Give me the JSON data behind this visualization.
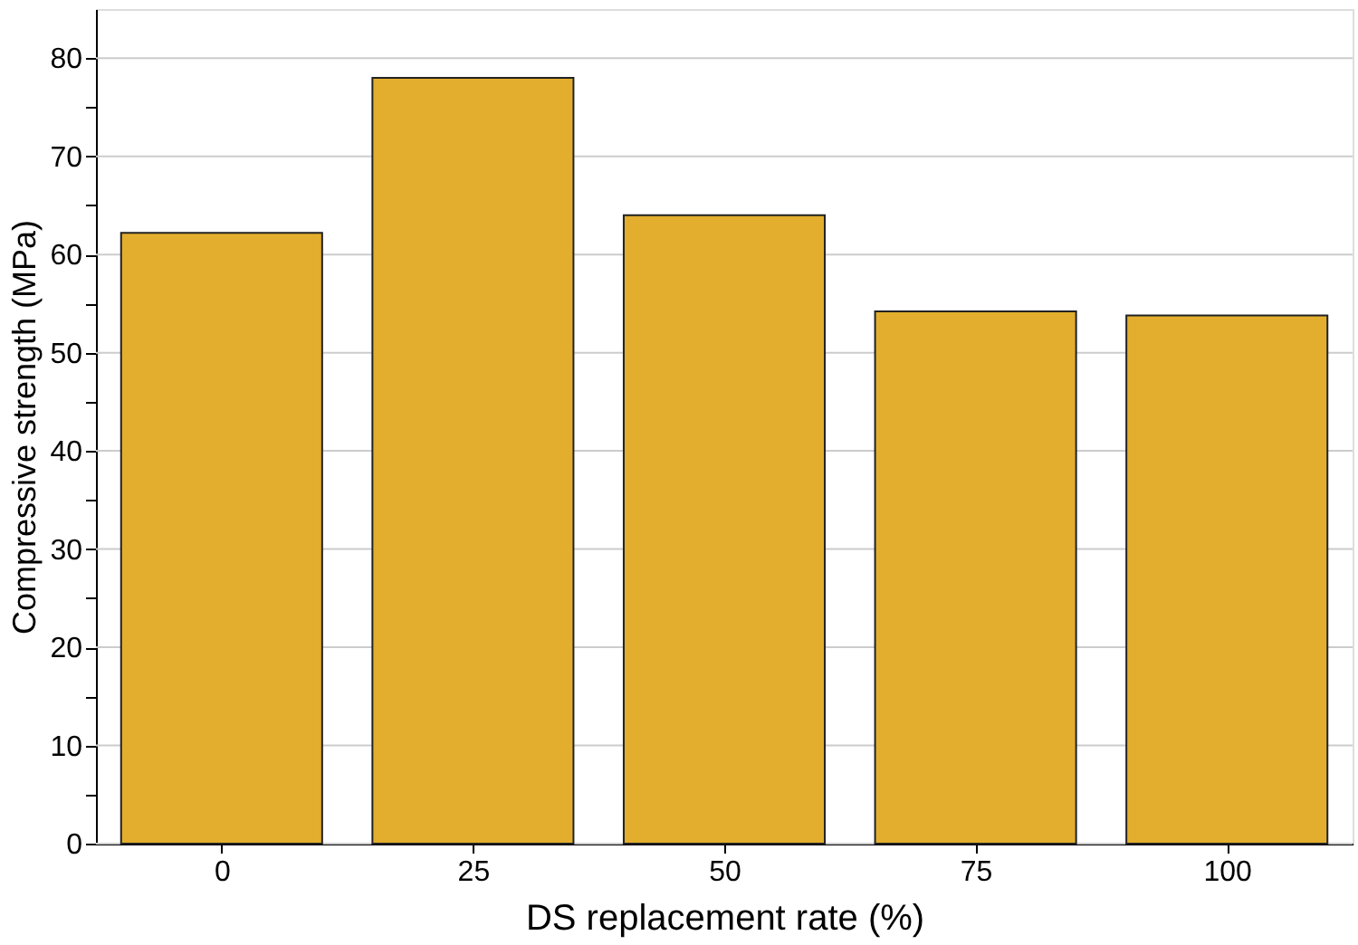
{
  "chart_data": {
    "type": "bar",
    "xlabel": "DS replacement rate (%)",
    "ylabel": "Compressive strength (MPa)",
    "categories": [
      "0",
      "25",
      "50",
      "75",
      "100"
    ],
    "values": [
      62.2,
      78.0,
      64.0,
      54.2,
      53.8
    ],
    "color": "#e3ae2e",
    "ylim": [
      0,
      85
    ],
    "yticks": [
      0,
      {
        "value": 5,
        "label": null
      },
      10,
      {
        "value": 15,
        "label": null
      },
      20,
      {
        "value": 25,
        "label": null
      },
      30,
      {
        "value": 35,
        "label": null
      },
      40,
      {
        "value": 45,
        "label": null
      },
      50,
      {
        "value": 55,
        "label": null
      },
      60,
      {
        "value": 65,
        "label": null
      },
      70,
      {
        "value": 75,
        "label": null
      },
      80
    ],
    "grid": "y"
  }
}
